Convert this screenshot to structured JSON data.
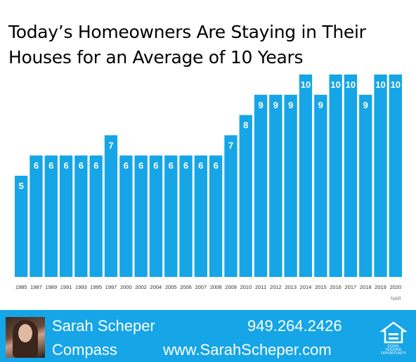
{
  "title_line1": "Today’s Homeowners Are Staying in Their",
  "title_line2": "Houses for an Average of 10 Years",
  "source": "NAR",
  "chart_data": {
    "type": "bar",
    "categories": [
      "1985",
      "1987",
      "1989",
      "1991",
      "1993",
      "1995",
      "1997",
      "2000",
      "2002",
      "2004",
      "2005",
      "2006",
      "2007",
      "2008",
      "2009",
      "2010",
      "2011",
      "2012",
      "2013",
      "2014",
      "2015",
      "2016",
      "2017",
      "2018",
      "2019",
      "2020"
    ],
    "values": [
      5,
      6,
      6,
      6,
      6,
      6,
      7,
      6,
      6,
      6,
      6,
      6,
      6,
      6,
      7,
      8,
      9,
      9,
      9,
      10,
      9,
      10,
      10,
      9,
      10,
      10
    ],
    "title": "Today’s Homeowners Are Staying in Their Houses for an Average of 10 Years",
    "xlabel": "",
    "ylabel": "",
    "ylim": [
      0,
      10
    ],
    "bar_color": "#16a5e6",
    "label_color": "#ffffff",
    "grid": false,
    "legend": "none"
  },
  "footer": {
    "name": "Sarah Scheper",
    "company": "Compass",
    "phone": "949.264.2426",
    "website": "www.SarahScheper.com",
    "eho_text": "EQUAL HOUSING OPPORTUNITY",
    "background": "#16a5e6"
  },
  "icons": {
    "photo": "agent-photo",
    "eho": "equal-housing-icon"
  }
}
